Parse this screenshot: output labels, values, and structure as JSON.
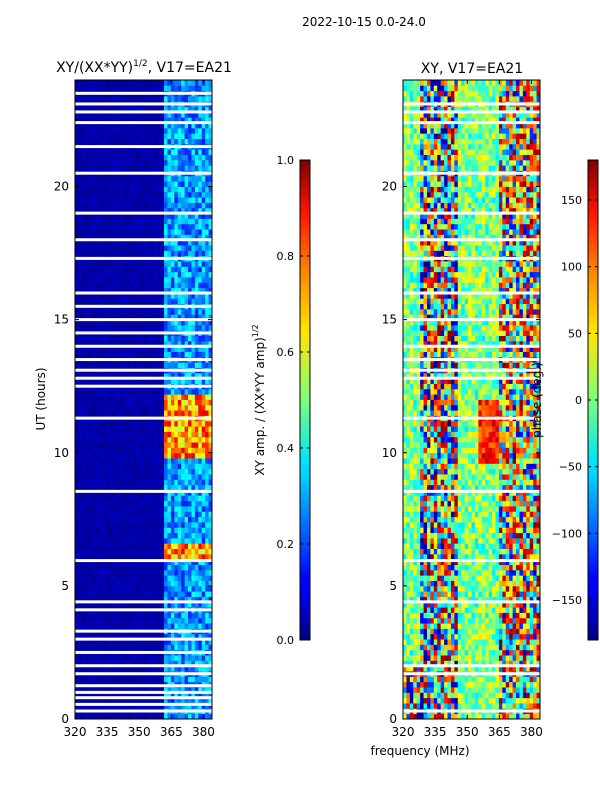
{
  "figure": {
    "suptitle": "2022-10-15 0.0-24.0",
    "xlabel_shared": "frequency (MHz)"
  },
  "chart_data": [
    {
      "type": "heatmap",
      "title_main": "XY/(XX*YY)",
      "title_sup": "1/2",
      "title_rest": ", V17=EA21",
      "xlabel": "",
      "ylabel": "UT (hours)",
      "xlim": [
        320,
        384
      ],
      "ylim": [
        0,
        24
      ],
      "xticks": [
        "320",
        "335",
        "350",
        "365",
        "380"
      ],
      "yticks": [
        "0",
        "5",
        "10",
        "15",
        "20"
      ],
      "xtick_values": [
        320,
        335,
        350,
        365,
        380
      ],
      "ytick_values": [
        0,
        5,
        10,
        15,
        20
      ],
      "colorbar": {
        "label_main": "XY amp. / (XX*YY amp)",
        "label_sup": "1/2",
        "range": [
          0.0,
          1.0
        ],
        "ticks": [
          "0.0",
          "0.2",
          "0.4",
          "0.6",
          "0.8",
          "1.0"
        ],
        "tick_values": [
          0.0,
          0.2,
          0.4,
          0.6,
          0.8,
          1.0
        ],
        "colormap": "jet"
      },
      "flagged_hours": [
        0.3,
        0.55,
        0.8,
        1.0,
        1.25,
        1.7,
        2.0,
        2.5,
        3.0,
        3.3,
        4.1,
        4.4,
        5.95,
        8.55,
        11.3,
        12.5,
        12.8,
        13.1,
        13.5,
        14.0,
        14.5,
        15.0,
        15.5,
        16.0,
        17.3,
        18.0,
        19.0,
        20.5,
        21.5,
        22.4,
        22.8,
        23.1,
        23.5
      ]
    },
    {
      "type": "heatmap",
      "title": "XY, V17=EA21",
      "xlabel": "frequency (MHz)",
      "ylabel": "",
      "xlim": [
        320,
        384
      ],
      "ylim": [
        0,
        24
      ],
      "xticks": [
        "320",
        "335",
        "350",
        "365",
        "380"
      ],
      "yticks": [
        "0",
        "5",
        "10",
        "15",
        "20"
      ],
      "xtick_values": [
        320,
        335,
        350,
        365,
        380
      ],
      "ytick_values": [
        0,
        5,
        10,
        15,
        20
      ],
      "colorbar": {
        "label": "phase (deg.)",
        "range": [
          -180,
          180
        ],
        "ticks": [
          "−150",
          "−100",
          "−50",
          "0",
          "50",
          "100",
          "150"
        ],
        "tick_values": [
          -150,
          -100,
          -50,
          0,
          50,
          100,
          150
        ],
        "colormap": "jet"
      },
      "flagged_hours": [
        0.3,
        1.7,
        2.0,
        4.4,
        5.95,
        8.55,
        11.3,
        12.8,
        13.1,
        13.5,
        14.0,
        15.0,
        16.0,
        17.3,
        18.0,
        19.0,
        20.5,
        22.4,
        22.8,
        23.1
      ]
    }
  ]
}
